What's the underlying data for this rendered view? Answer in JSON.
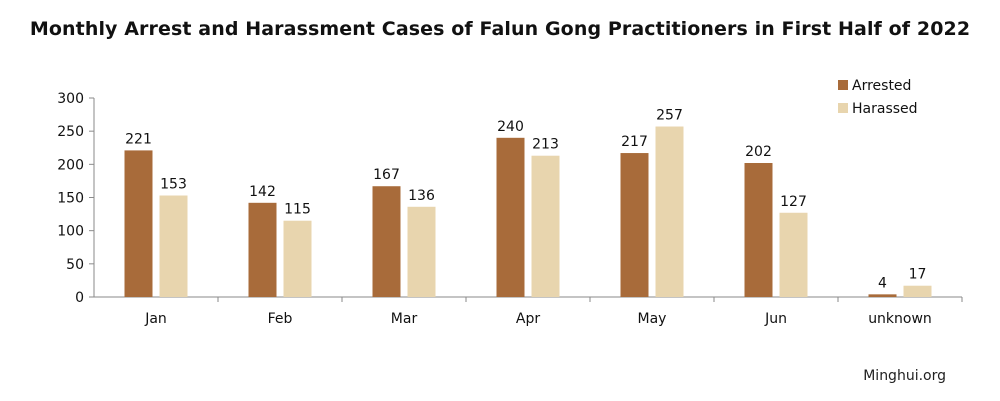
{
  "chart_data": {
    "type": "bar",
    "title": "Monthly Arrest and Harassment Cases of Falun Gong Practitioners in First Half of 2022",
    "categories": [
      "Jan",
      "Feb",
      "Mar",
      "Apr",
      "May",
      "Jun",
      "unknown"
    ],
    "series": [
      {
        "name": "Arrested",
        "values": [
          221,
          142,
          167,
          240,
          217,
          202,
          4
        ],
        "color": "#a86b3a"
      },
      {
        "name": "Harassed",
        "values": [
          153,
          115,
          136,
          213,
          257,
          127,
          17
        ],
        "color": "#e8d5ae"
      }
    ],
    "ylim": [
      0,
      300
    ],
    "yticks": [
      "0",
      "50",
      "100",
      "150",
      "200",
      "250",
      "300"
    ],
    "grid": false,
    "legend": "top-right",
    "xlabel": "",
    "ylabel": ""
  },
  "credit": "Minghui.org"
}
